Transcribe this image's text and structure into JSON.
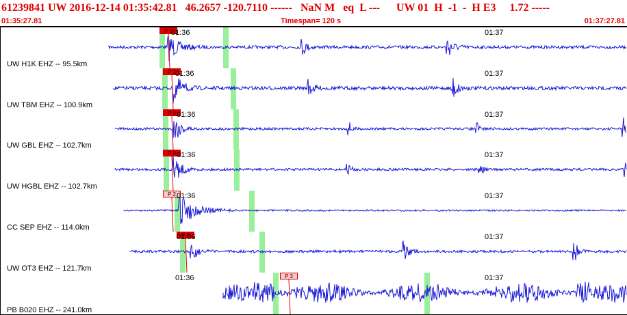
{
  "header": {
    "event": "61239841 UW 2016-12-14 01:35:42.81   46.2657 -120.7110 ------   NaN M   eq  L ---      UW 01  H  -1  -  H E3     1.72 -----",
    "start_time": "01:35:27.81",
    "timespan": "Timespan= 120 s",
    "end_time": "01:37:27.81"
  },
  "colors": {
    "trace": "#1515d6",
    "pick": "#e00000",
    "pick_light": "#ffc8c8",
    "window": "#9aef9a",
    "text_red": "#e00000"
  },
  "panels": [
    {
      "channel": "UW H1K EHZ -- 95.5km",
      "tick1": "01:36",
      "tick2": "01:37",
      "pick_label": "P 1",
      "pick_style": "solid"
    },
    {
      "channel": "UW TBM EHZ -- 100.9km",
      "tick1": "01:36",
      "tick2": "01:37",
      "pick_label": "P 2",
      "pick_style": "solid"
    },
    {
      "channel": "UW GBL EHZ -- 102.7km",
      "tick1": "01:36",
      "tick2": "01:37",
      "pick_label": "P 0",
      "pick_style": "solid"
    },
    {
      "channel": "UW HGBL EHZ -- 102.7km",
      "tick1": "01:36",
      "tick2": "01:37",
      "pick_label": "P 0",
      "pick_style": "solid"
    },
    {
      "channel": "CC SEP EHZ -- 114.0km",
      "tick1": "01:36",
      "tick2": "01:37",
      "pick_label": "P 2",
      "pick_style": "light"
    },
    {
      "channel": "UW OT3 EHZ -- 121.7km",
      "tick1": "01:36",
      "tick2": "01:37",
      "pick_label": "P 0",
      "pick_style": "solid"
    },
    {
      "channel": "PB B020 EHZ -- 241.0km",
      "tick1": "01:36",
      "tick2": "01:37",
      "pick_label": "P 3",
      "pick_style": "light"
    }
  ]
}
